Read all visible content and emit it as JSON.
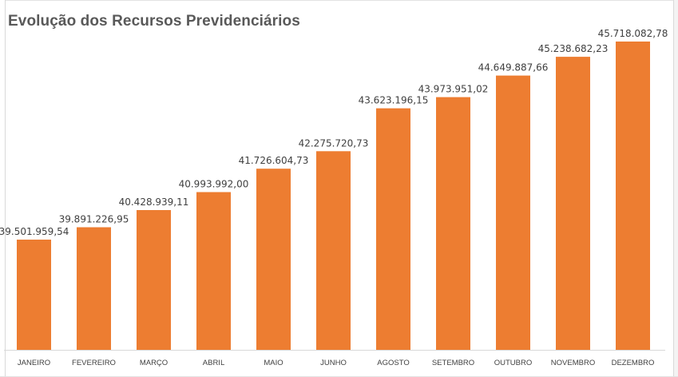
{
  "colors": {
    "bar": "#ED7D31",
    "axis": "#d9d9d9",
    "title": "#595959",
    "label": "#404040"
  },
  "chart_data": {
    "type": "bar",
    "title": "Evolução dos Recursos Previdenciários",
    "xlabel": "",
    "ylabel": "",
    "grid": false,
    "legend": "none",
    "ylim": [
      39000000,
      46000000
    ],
    "categories": [
      "JANEIRO",
      "FEVEREIRO",
      "MARÇO",
      "ABRIL",
      "MAIO",
      "JUNHO",
      "AGOSTO",
      "SETEMBRO",
      "OUTUBRO",
      "NOVEMBRO",
      "DEZEMBRO"
    ],
    "values": [
      39501959.54,
      39891226.95,
      40428939.11,
      40993992.0,
      41726604.73,
      42275720.73,
      43623196.15,
      43973951.02,
      44649887.66,
      45238682.23,
      45718082.78
    ],
    "data_labels": [
      "39.501.959,54",
      "39.891.226,95",
      "40.428.939,11",
      "40.993.992,00",
      "41.726.604,73",
      "42.275.720,73",
      "43.623.196,15",
      "43.973.951,02",
      "44.649.887,66",
      "45.238.682,23",
      "45.718.082,78"
    ]
  }
}
